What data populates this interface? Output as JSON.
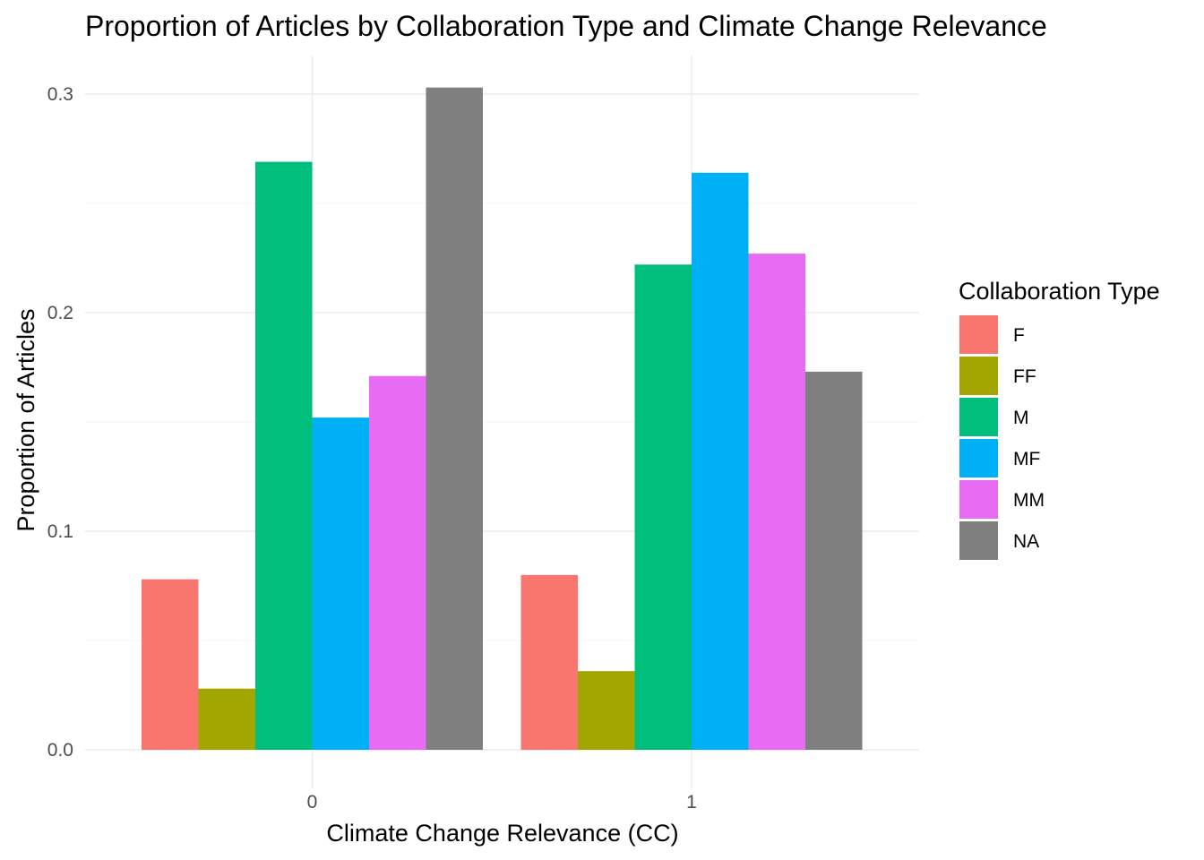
{
  "chart_data": {
    "type": "bar",
    "title": "Proportion of Articles by Collaboration Type and Climate Change Relevance",
    "xlabel": "Climate Change Relevance (CC)",
    "ylabel": "Proportion of Articles",
    "categories": [
      "0",
      "1"
    ],
    "yticks": [
      "0.0",
      "0.1",
      "0.2",
      "0.3"
    ],
    "ylim": [
      0,
      0.31
    ],
    "grid": true,
    "legend": {
      "title": "Collaboration Type",
      "placement": "right"
    },
    "series": [
      {
        "name": "F",
        "color": "#F8766D",
        "values": [
          0.078,
          0.08
        ]
      },
      {
        "name": "FF",
        "color": "#A3A500",
        "values": [
          0.028,
          0.036
        ]
      },
      {
        "name": "M",
        "color": "#00BF7D",
        "values": [
          0.269,
          0.222
        ]
      },
      {
        "name": "MF",
        "color": "#00B0F6",
        "values": [
          0.152,
          0.264
        ]
      },
      {
        "name": "MM",
        "color": "#E76BF3",
        "values": [
          0.171,
          0.227
        ]
      },
      {
        "name": "NA",
        "color": "#7F7F7F",
        "values": [
          0.303,
          0.173
        ]
      }
    ]
  }
}
